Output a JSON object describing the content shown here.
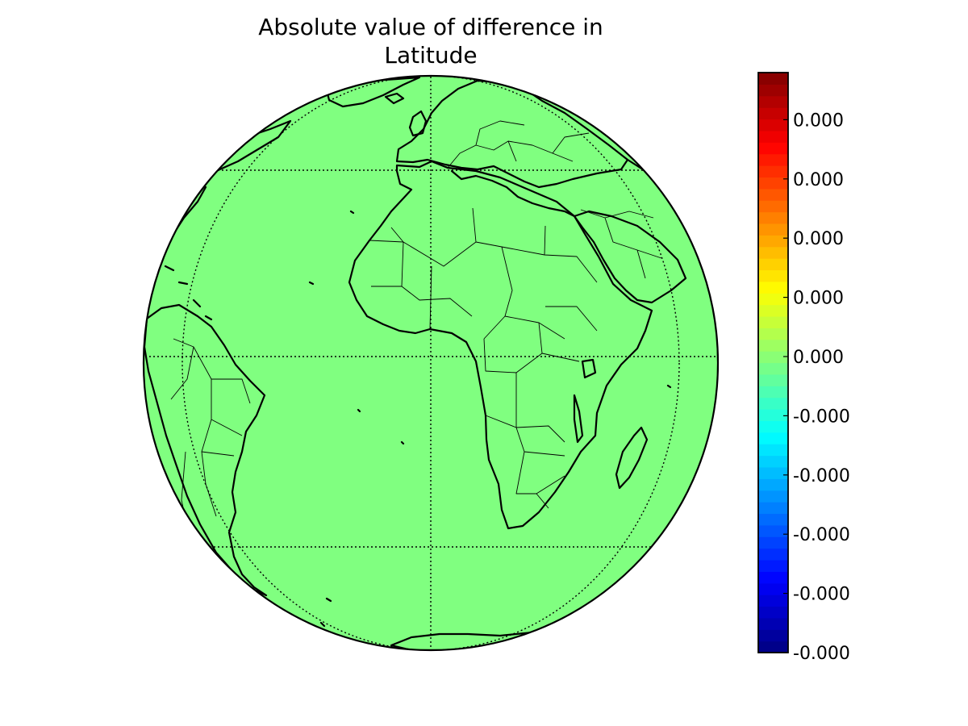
{
  "title": {
    "line1": "Absolute value of difference in",
    "line2": "Latitude"
  },
  "map": {
    "projection": "orthographic",
    "center_lon": 0,
    "center_lat": 0,
    "fill_color": "#80ff80",
    "graticule": {
      "parallels": [
        -30,
        0,
        30
      ],
      "meridians": [
        -60,
        0,
        60
      ],
      "style": "dotted"
    },
    "features": [
      "coastlines",
      "country-borders"
    ]
  },
  "colorbar": {
    "colormap": "jet",
    "orientation": "vertical",
    "placement": "right",
    "tick_labels": [
      "0.000",
      "0.000",
      "0.000",
      "0.000",
      "0.000",
      "-0.000",
      "-0.000",
      "-0.000",
      "-0.000",
      "-0.000"
    ],
    "n_levels": 50
  }
}
